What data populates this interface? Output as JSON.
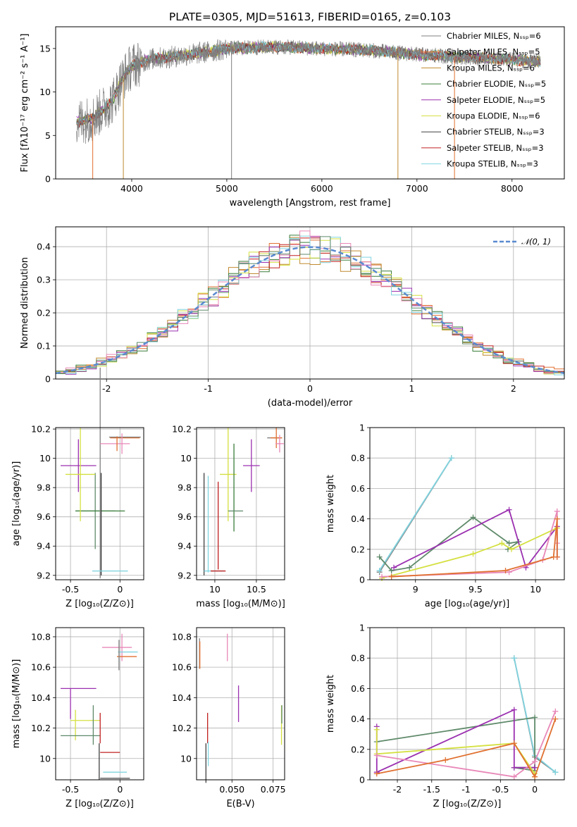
{
  "figure": {
    "title": "PLATE=0305, MJD=51613, FIBERID=0165, z=0.103"
  },
  "colors": {
    "chabrier_miles": "#7f7f7f",
    "salpeter_miles": "#e07030",
    "kroupa_miles": "#c08a30",
    "chabrier_elodie": "#3a7d3a",
    "salpeter_elodie": "#9b30b0",
    "kroupa_elodie": "#d4e040",
    "chabrier_stelib": "#404040",
    "salpeter_stelib": "#c02020",
    "kroupa_stelib": "#80d4e0",
    "green_gray": "#5f8a6a",
    "pink": "#e888b8",
    "gaussian": "#5a8ad0"
  },
  "chart_data": [
    {
      "id": "spectrum",
      "type": "line",
      "xlabel": "wavelength [Angstrom, rest frame]",
      "ylabel": "Flux [fλ10⁻¹⁷ erg cm⁻² s⁻¹ A⁻¹]",
      "xlim": [
        3200,
        8550
      ],
      "ylim": [
        0,
        17.5
      ],
      "xticks": [
        4000,
        5000,
        6000,
        7000,
        8000
      ],
      "yticks": [
        0,
        5,
        10,
        15
      ],
      "legend_position": "top-right",
      "legend": [
        "Chabrier MILES, Nₛₛₚ=6",
        "Salpeter MILES, Nₛₛₚ=5",
        "Kroupa MILES, Nₛₛₚ=6",
        "Chabrier ELODIE, Nₛₛₚ=5",
        "Salpeter ELODIE, Nₛₛₚ=5",
        "Kroupa ELODIE, Nₛₛₚ=6",
        "Chabrier STELIB, Nₛₛₚ=3",
        "Salpeter STELIB, Nₛₛₚ=3",
        "Kroupa STELIB, Nₛₛₚ=3"
      ],
      "continuum": {
        "x": [
          3400,
          3600,
          3800,
          3900,
          4000,
          4200,
          4400,
          4600,
          4800,
          5000,
          5500,
          6000,
          6500,
          7000,
          7500,
          8000,
          8300
        ],
        "y": [
          6.5,
          7.0,
          9.0,
          11.5,
          13.0,
          13.8,
          14.0,
          14.3,
          14.6,
          15.0,
          15.2,
          15.0,
          14.8,
          14.3,
          14.0,
          13.7,
          13.5
        ]
      }
    },
    {
      "id": "residuals",
      "type": "histogram",
      "xlabel": "(data-model)/error",
      "ylabel": "Normed distribution",
      "xlim": [
        -2.5,
        2.5
      ],
      "ylim": [
        0,
        0.46
      ],
      "xticks": [
        -2,
        -1,
        0,
        1,
        2
      ],
      "yticks": [
        0.0,
        0.1,
        0.2,
        0.3,
        0.4
      ],
      "legend": [
        "𝒩(0, 1)"
      ],
      "legend_position": "top-right",
      "grid": true
    },
    {
      "id": "age_vs_Z",
      "type": "errorbar",
      "xlabel": "Z [log₁₀(Z/Z⊙)]",
      "ylabel": "age  [log₁₀(age/yr)]",
      "xlim": [
        -0.65,
        0.24
      ],
      "ylim": [
        9.17,
        10.21
      ],
      "xticks": [
        -0.5,
        0.0
      ],
      "yticks": [
        9.2,
        9.4,
        9.6,
        9.8,
        10.0,
        10.2
      ],
      "grid": true,
      "points": [
        {
          "x": -0.25,
          "xerr": 0.2,
          "y": 9.64,
          "yerr": 0.26,
          "color": "green_gray"
        },
        {
          "x": -0.2,
          "xerr": 0.25,
          "y": 9.64,
          "yerr": 0.0,
          "color": "chabrier_elodie"
        },
        {
          "x": -0.42,
          "xerr": 0.18,
          "y": 9.95,
          "yerr": 0.18,
          "color": "salpeter_elodie"
        },
        {
          "x": -0.4,
          "xerr": 0.15,
          "y": 9.89,
          "yerr": 0.32,
          "color": "kroupa_elodie"
        },
        {
          "x": -0.2,
          "xerr": 0.0,
          "y": 9.9,
          "yerr": 0.72,
          "color": "chabrier_miles"
        },
        {
          "x": -0.19,
          "xerr": 0.0,
          "y": 9.55,
          "yerr": 0.35,
          "color": "chabrier_stelib"
        },
        {
          "x": -0.1,
          "xerr": 0.18,
          "y": 9.23,
          "yerr": 0.0,
          "color": "kroupa_stelib"
        },
        {
          "x": -0.05,
          "xerr": 0.15,
          "y": 10.1,
          "yerr": 0.0,
          "color": "pink"
        },
        {
          "x": 0.05,
          "xerr": 0.15,
          "y": 10.14,
          "yerr": 0.0,
          "color": "salpeter_miles"
        },
        {
          "x": 0.05,
          "xerr": 0.16,
          "y": 10.145,
          "yerr": 0.0,
          "color": "chabrier_miles"
        },
        {
          "x": -0.03,
          "xerr": 0.0,
          "y": 10.1,
          "yerr": 0.05,
          "color": "salpeter_miles"
        },
        {
          "x": 0.02,
          "xerr": 0.0,
          "y": 10.1,
          "yerr": 0.07,
          "color": "pink"
        }
      ]
    },
    {
      "id": "age_vs_mass",
      "type": "errorbar",
      "xlabel": "mass [log₁₀(M/M⊙)]",
      "ylabel": "",
      "xlim": [
        9.78,
        10.84
      ],
      "ylim": [
        9.17,
        10.21
      ],
      "xticks": [
        10.0,
        10.5
      ],
      "yticks": [
        9.2,
        9.4,
        9.6,
        9.8,
        10.0,
        10.2
      ],
      "grid": true,
      "points": [
        {
          "x": 9.87,
          "xerr": 0.0,
          "y": 9.55,
          "yerr": 0.35,
          "color": "chabrier_stelib"
        },
        {
          "x": 9.92,
          "xerr": 0.0,
          "y": 9.55,
          "yerr": 0.33,
          "color": "kroupa_stelib"
        },
        {
          "x": 9.99,
          "xerr": 0.12,
          "y": 9.23,
          "yerr": 0.0,
          "color": "kroupa_stelib"
        },
        {
          "x": 10.04,
          "xerr": 0.0,
          "y": 9.54,
          "yerr": 0.3,
          "color": "salpeter_stelib"
        },
        {
          "x": 10.04,
          "xerr": 0.09,
          "y": 9.23,
          "yerr": 0.0,
          "color": "salpeter_stelib"
        },
        {
          "x": 10.16,
          "xerr": 0.1,
          "y": 9.89,
          "yerr": 0.32,
          "color": "kroupa_elodie"
        },
        {
          "x": 10.23,
          "xerr": 0.0,
          "y": 9.8,
          "yerr": 0.3,
          "color": "chabrier_elodie"
        },
        {
          "x": 10.25,
          "xerr": 0.09,
          "y": 9.64,
          "yerr": 0.0,
          "color": "green_gray"
        },
        {
          "x": 10.44,
          "xerr": 0.1,
          "y": 9.95,
          "yerr": 0.18,
          "color": "salpeter_elodie"
        },
        {
          "x": 10.72,
          "xerr": 0.09,
          "y": 10.14,
          "yerr": 0.0,
          "color": "chabrier_miles"
        },
        {
          "x": 10.74,
          "xerr": 0.07,
          "y": 10.14,
          "yerr": 0.07,
          "color": "salpeter_miles"
        },
        {
          "x": 10.78,
          "xerr": 0.05,
          "y": 10.1,
          "yerr": 0.06,
          "color": "pink"
        }
      ]
    },
    {
      "id": "massweight_vs_age",
      "type": "line",
      "xlabel": "age  [log₁₀(age/yr)]",
      "ylabel": "mass weight",
      "xlim": [
        8.62,
        10.24
      ],
      "ylim": [
        0,
        1
      ],
      "xticks": [
        9.0,
        9.5,
        10.0
      ],
      "yticks": [
        0.0,
        0.2,
        0.4,
        0.6,
        0.8,
        1.0
      ],
      "grid": true,
      "series": [
        {
          "color": "chabrier_miles",
          "x": [
            8.7,
            9.3
          ],
          "y": [
            0.05,
            0.8
          ]
        },
        {
          "color": "kroupa_stelib",
          "x": [
            8.7,
            9.3
          ],
          "y": [
            0.06,
            0.8
          ]
        },
        {
          "color": "green_gray",
          "x": [
            8.7,
            8.8,
            8.95,
            9.48,
            9.78,
            9.86,
            9.77
          ],
          "y": [
            0.15,
            0.06,
            0.08,
            0.41,
            0.24,
            0.25,
            0.2
          ]
        },
        {
          "color": "salpeter_elodie",
          "x": [
            8.82,
            9.78,
            9.92,
            10.18,
            10.18
          ],
          "y": [
            0.08,
            0.46,
            0.08,
            0.35,
            0.15
          ]
        },
        {
          "color": "kroupa_elodie",
          "x": [
            8.72,
            9.48,
            9.72,
            9.8,
            10.18
          ],
          "y": [
            0.01,
            0.17,
            0.24,
            0.2,
            0.34
          ]
        },
        {
          "color": "pink",
          "x": [
            8.72,
            9.78,
            10.06,
            10.18,
            10.18
          ],
          "y": [
            0.02,
            0.05,
            0.13,
            0.45,
            0.24
          ]
        },
        {
          "color": "salpeter_miles",
          "x": [
            8.8,
            9.75,
            10.15,
            10.18,
            10.18
          ],
          "y": [
            0.02,
            0.06,
            0.15,
            0.4,
            0.15
          ]
        }
      ]
    },
    {
      "id": "mass_vs_Z",
      "type": "errorbar",
      "xlabel": "Z [log₁₀(Z/Z⊙)]",
      "ylabel": "mass [log₁₀(M/M⊙)]",
      "xlim": [
        -0.65,
        0.24
      ],
      "ylim": [
        9.86,
        10.86
      ],
      "xticks": [
        -0.5,
        0.0
      ],
      "yticks": [
        10.0,
        10.2,
        10.4,
        10.6,
        10.8
      ],
      "grid": true,
      "points": [
        {
          "x": -0.42,
          "xerr": 0.18,
          "y": 10.46,
          "yerr": 0.0,
          "color": "salpeter_elodie"
        },
        {
          "x": -0.5,
          "xerr": 0.0,
          "y": 10.36,
          "yerr": 0.1,
          "color": "salpeter_elodie"
        },
        {
          "x": -0.35,
          "xerr": 0.15,
          "y": 10.25,
          "yerr": 0.0,
          "color": "kroupa_elodie"
        },
        {
          "x": -0.45,
          "xerr": 0.0,
          "y": 10.22,
          "yerr": 0.1,
          "color": "kroupa_elodie"
        },
        {
          "x": -0.4,
          "xerr": 0.2,
          "y": 10.15,
          "yerr": 0.0,
          "color": "green_gray"
        },
        {
          "x": -0.27,
          "xerr": 0.0,
          "y": 10.22,
          "yerr": 0.13,
          "color": "green_gray"
        },
        {
          "x": -0.2,
          "xerr": 0.0,
          "y": 10.2,
          "yerr": 0.1,
          "color": "salpeter_stelib"
        },
        {
          "x": -0.1,
          "xerr": 0.1,
          "y": 10.04,
          "yerr": 0.0,
          "color": "salpeter_stelib"
        },
        {
          "x": -0.05,
          "xerr": 0.12,
          "y": 9.91,
          "yerr": 0.0,
          "color": "kroupa_stelib"
        },
        {
          "x": -0.21,
          "xerr": 0.0,
          "y": 9.98,
          "yerr": 0.12,
          "color": "chabrier_stelib"
        },
        {
          "x": -0.05,
          "xerr": 0.15,
          "y": 9.87,
          "yerr": 0.0,
          "color": "chabrier_stelib"
        },
        {
          "x": -0.03,
          "xerr": 0.15,
          "y": 10.73,
          "yerr": 0.0,
          "color": "pink"
        },
        {
          "x": 0.02,
          "xerr": 0.0,
          "y": 10.73,
          "yerr": 0.09,
          "color": "pink"
        },
        {
          "x": 0.07,
          "xerr": 0.1,
          "y": 10.67,
          "yerr": 0.0,
          "color": "salpeter_miles"
        },
        {
          "x": 0.08,
          "xerr": 0.1,
          "y": 10.7,
          "yerr": 0.0,
          "color": "kroupa_stelib"
        },
        {
          "x": -0.01,
          "xerr": 0.0,
          "y": 10.68,
          "yerr": 0.1,
          "color": "chabrier_miles"
        }
      ]
    },
    {
      "id": "mass_vs_ebv",
      "type": "errorbar",
      "xlabel": "E(B-V)",
      "ylabel": "",
      "xlim": [
        0.0285,
        0.082
      ],
      "ylim": [
        9.86,
        10.86
      ],
      "xticks": [
        0.05,
        0.075
      ],
      "xticklabels": [
        "0.050",
        "0.075"
      ],
      "yticks": [
        10.0,
        10.2,
        10.4,
        10.6,
        10.8
      ],
      "grid": true,
      "points": [
        {
          "x": 0.0303,
          "yerr": 0.1,
          "y": 10.69,
          "color": "chabrier_miles"
        },
        {
          "x": 0.0305,
          "yerr": 0.09,
          "y": 10.68,
          "color": "salpeter_miles"
        },
        {
          "x": 0.0342,
          "yerr": 0.13,
          "y": 9.97,
          "color": "chabrier_stelib"
        },
        {
          "x": 0.0352,
          "yerr": 0.1,
          "y": 10.2,
          "color": "salpeter_stelib"
        },
        {
          "x": 0.0356,
          "yerr": 0.08,
          "y": 10.03,
          "color": "kroupa_stelib"
        },
        {
          "x": 0.0472,
          "yerr": 0.09,
          "y": 10.73,
          "color": "pink"
        },
        {
          "x": 0.054,
          "yerr": 0.12,
          "y": 10.36,
          "color": "salpeter_elodie"
        },
        {
          "x": 0.0801,
          "yerr": 0.13,
          "y": 10.22,
          "color": "kroupa_elodie"
        },
        {
          "x": 0.0803,
          "yerr": 0.06,
          "y": 10.29,
          "color": "green_gray"
        }
      ]
    },
    {
      "id": "massweight_vs_Z",
      "type": "line",
      "xlabel": "Z [log₁₀(Z/Z⊙)]",
      "ylabel": "mass weight",
      "xlim": [
        -2.4,
        0.43
      ],
      "ylim": [
        0,
        1
      ],
      "xticks": [
        -2.0,
        -1.5,
        -1.0,
        -0.5,
        0.0
      ],
      "yticks": [
        0.0,
        0.2,
        0.4,
        0.6,
        0.8,
        1.0
      ],
      "grid": true,
      "series": [
        {
          "color": "chabrier_miles",
          "x": [
            -0.3,
            0.0,
            0.3
          ],
          "y": [
            0.8,
            0.15,
            0.05
          ]
        },
        {
          "color": "kroupa_stelib",
          "x": [
            -0.3,
            0.0,
            0.3
          ],
          "y": [
            0.8,
            0.16,
            0.05
          ]
        },
        {
          "color": "green_gray",
          "x": [
            -2.3,
            0.0,
            0.0,
            -0.3,
            0.0
          ],
          "y": [
            0.25,
            0.41,
            0.06,
            0.08,
            0.08
          ]
        },
        {
          "color": "salpeter_elodie",
          "x": [
            -2.3,
            -2.3,
            -0.3,
            -0.3,
            0.0
          ],
          "y": [
            0.35,
            0.05,
            0.46,
            0.08,
            0.08
          ]
        },
        {
          "color": "kroupa_elodie",
          "x": [
            -2.3,
            -2.3,
            -0.3,
            0.0,
            0.0
          ],
          "y": [
            0.33,
            0.17,
            0.24,
            0.04,
            0.02
          ]
        },
        {
          "color": "pink",
          "x": [
            -2.3,
            -0.3,
            0.0,
            0.3
          ],
          "y": [
            0.16,
            0.02,
            0.12,
            0.45
          ]
        },
        {
          "color": "salpeter_miles",
          "x": [
            -2.3,
            -1.3,
            -0.3,
            0.0,
            0.3
          ],
          "y": [
            0.04,
            0.13,
            0.24,
            0.02,
            0.4
          ]
        }
      ]
    }
  ]
}
